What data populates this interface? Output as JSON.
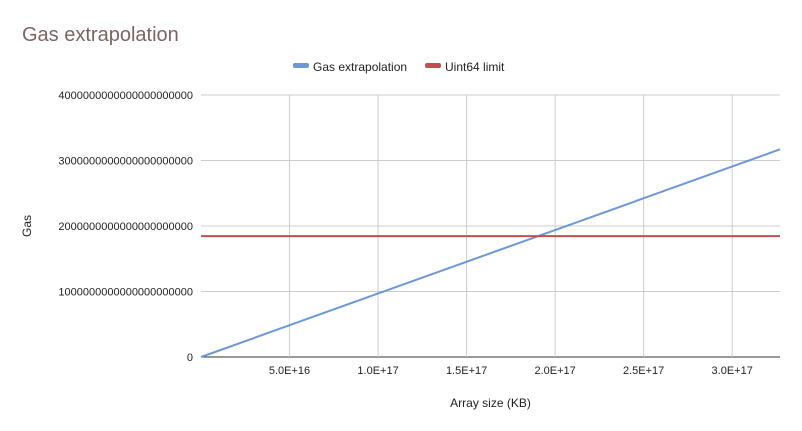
{
  "chart_data": {
    "type": "line",
    "title": "Gas extrapolation",
    "xlabel": "Array size (KB)",
    "ylabel": "Gas",
    "xlim": [
      0,
      327000000000000000
    ],
    "ylim": [
      0,
      4e+21
    ],
    "grid": true,
    "legend_position": "top",
    "x_ticks": [
      {
        "value": 50000000000000000,
        "label": "5.0E+16"
      },
      {
        "value": 100000000000000000,
        "label": "1.0E+17"
      },
      {
        "value": 150000000000000000,
        "label": "1.5E+17"
      },
      {
        "value": 200000000000000000,
        "label": "2.0E+17"
      },
      {
        "value": 250000000000000000,
        "label": "2.5E+17"
      },
      {
        "value": 300000000000000000,
        "label": "3.0E+17"
      }
    ],
    "y_ticks": [
      {
        "value": 0,
        "label": "0"
      },
      {
        "value": 1e+21,
        "label": "1000000000000000000000"
      },
      {
        "value": 2e+21,
        "label": "2000000000000000000000"
      },
      {
        "value": 3e+21,
        "label": "3000000000000000000000"
      },
      {
        "value": 4e+21,
        "label": "4000000000000000000000"
      }
    ],
    "series": [
      {
        "name": "Gas extrapolation",
        "color": "#6d98d8",
        "x": [
          0,
          327000000000000000
        ],
        "y": [
          0,
          3.17e+21
        ]
      },
      {
        "name": "Uint64 limit",
        "color": "#c0504d",
        "x": [
          0,
          327000000000000000
        ],
        "y": [
          1.845e+21,
          1.845e+21
        ]
      }
    ]
  }
}
